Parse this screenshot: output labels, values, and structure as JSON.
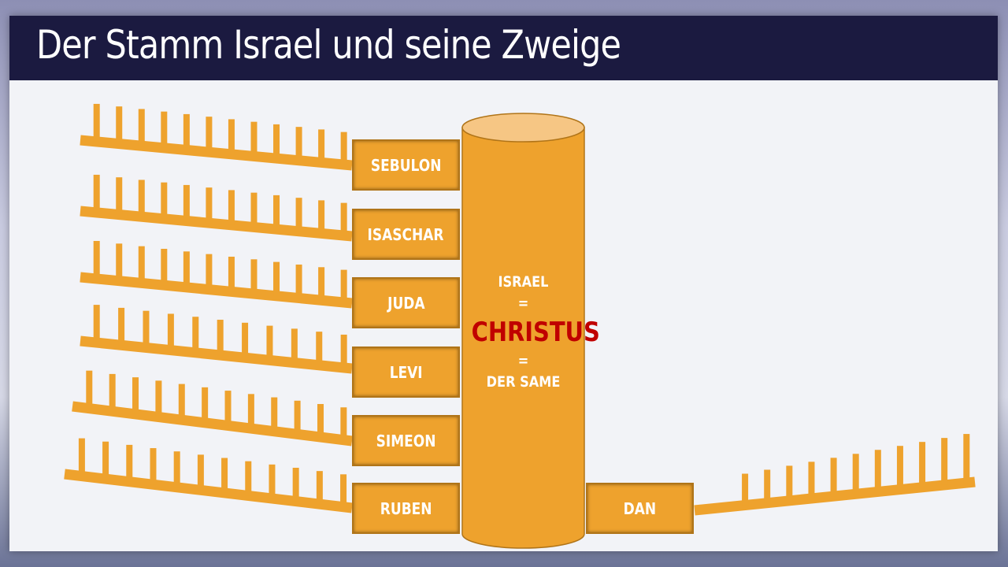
{
  "title": "Der Stamm Israel und seine Zweige",
  "trunk": {
    "line1": "ISRAEL",
    "eq1": "=",
    "highlight": "CHRISTUS",
    "eq2": "=",
    "line3": "DER SAME"
  },
  "branches": [
    "SEBULON",
    "ISASCHAR",
    "JUDA",
    "LEVI",
    "SIMEON",
    "RUBEN"
  ],
  "right_branch": "DAN",
  "colors": {
    "orange": "#eea22d",
    "highlight": "#c00000",
    "title_bar": "#1b1a40"
  }
}
